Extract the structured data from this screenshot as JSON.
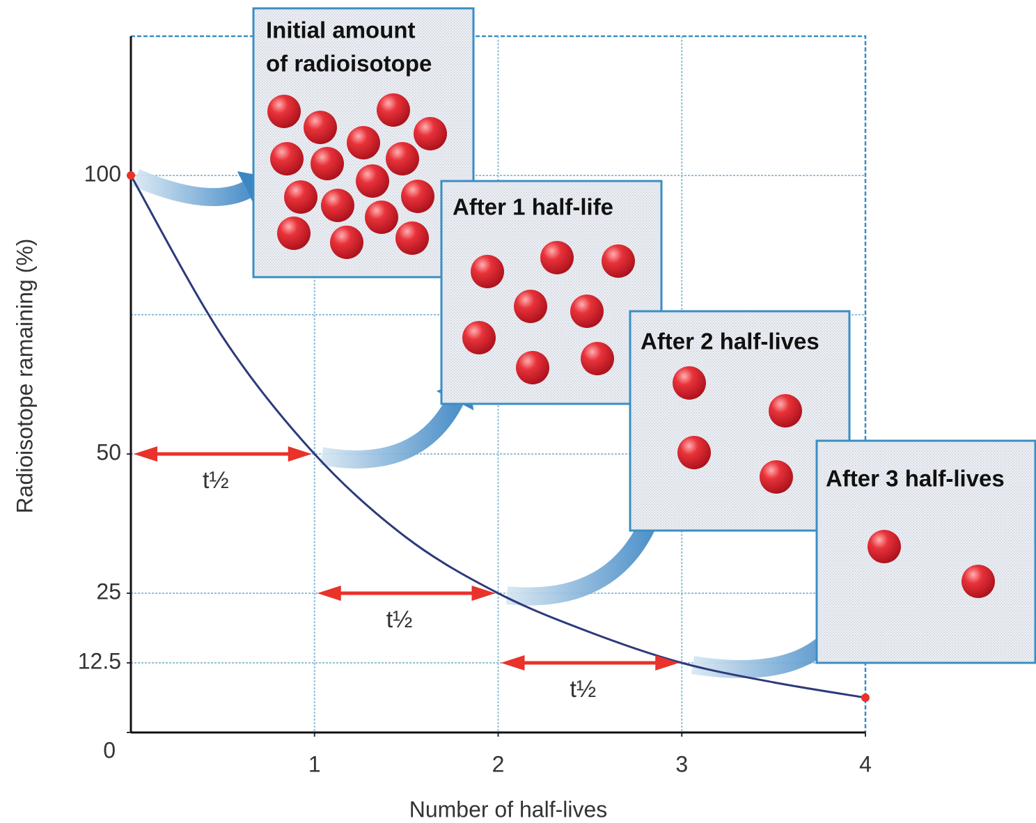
{
  "chart_data": {
    "type": "line",
    "x_label": "Number of half-lives",
    "y_label": "Radioisotope ramaining (%)",
    "xlim": [
      0,
      4
    ],
    "ylim": [
      0,
      125
    ],
    "xticks": [
      1,
      2,
      3,
      4
    ],
    "yticks": [
      0,
      12.5,
      25,
      50,
      100
    ],
    "ygrid": [
      12.5,
      25,
      50,
      75,
      100
    ],
    "xgrid": [
      1,
      2,
      3
    ],
    "grid": true,
    "x": [
      0,
      0.5,
      1,
      1.5,
      2,
      2.5,
      3,
      3.5,
      4
    ],
    "series": [
      {
        "name": "Radioisotope remaining",
        "color": "#2d3a7a",
        "values": [
          100,
          71,
          50,
          35,
          25,
          18,
          12.5,
          9,
          6.25
        ]
      }
    ],
    "endpoint_color": "#e8322a",
    "half_life_arrows": [
      {
        "label": "t½",
        "x": [
          0,
          1
        ],
        "y": 50
      },
      {
        "label": "t½",
        "x": [
          1,
          2
        ],
        "y": 25
      },
      {
        "label": "t½",
        "x": [
          2,
          3
        ],
        "y": 12.5
      }
    ],
    "panels": [
      {
        "title": [
          "Initial amount",
          "of radioisotope"
        ],
        "count": 16
      },
      {
        "title": [
          "After 1 half-life"
        ],
        "count": 8
      },
      {
        "title": [
          "After 2 half-lives"
        ],
        "count": 4
      },
      {
        "title": [
          "After 3 half-lives"
        ],
        "count": 2
      }
    ]
  }
}
